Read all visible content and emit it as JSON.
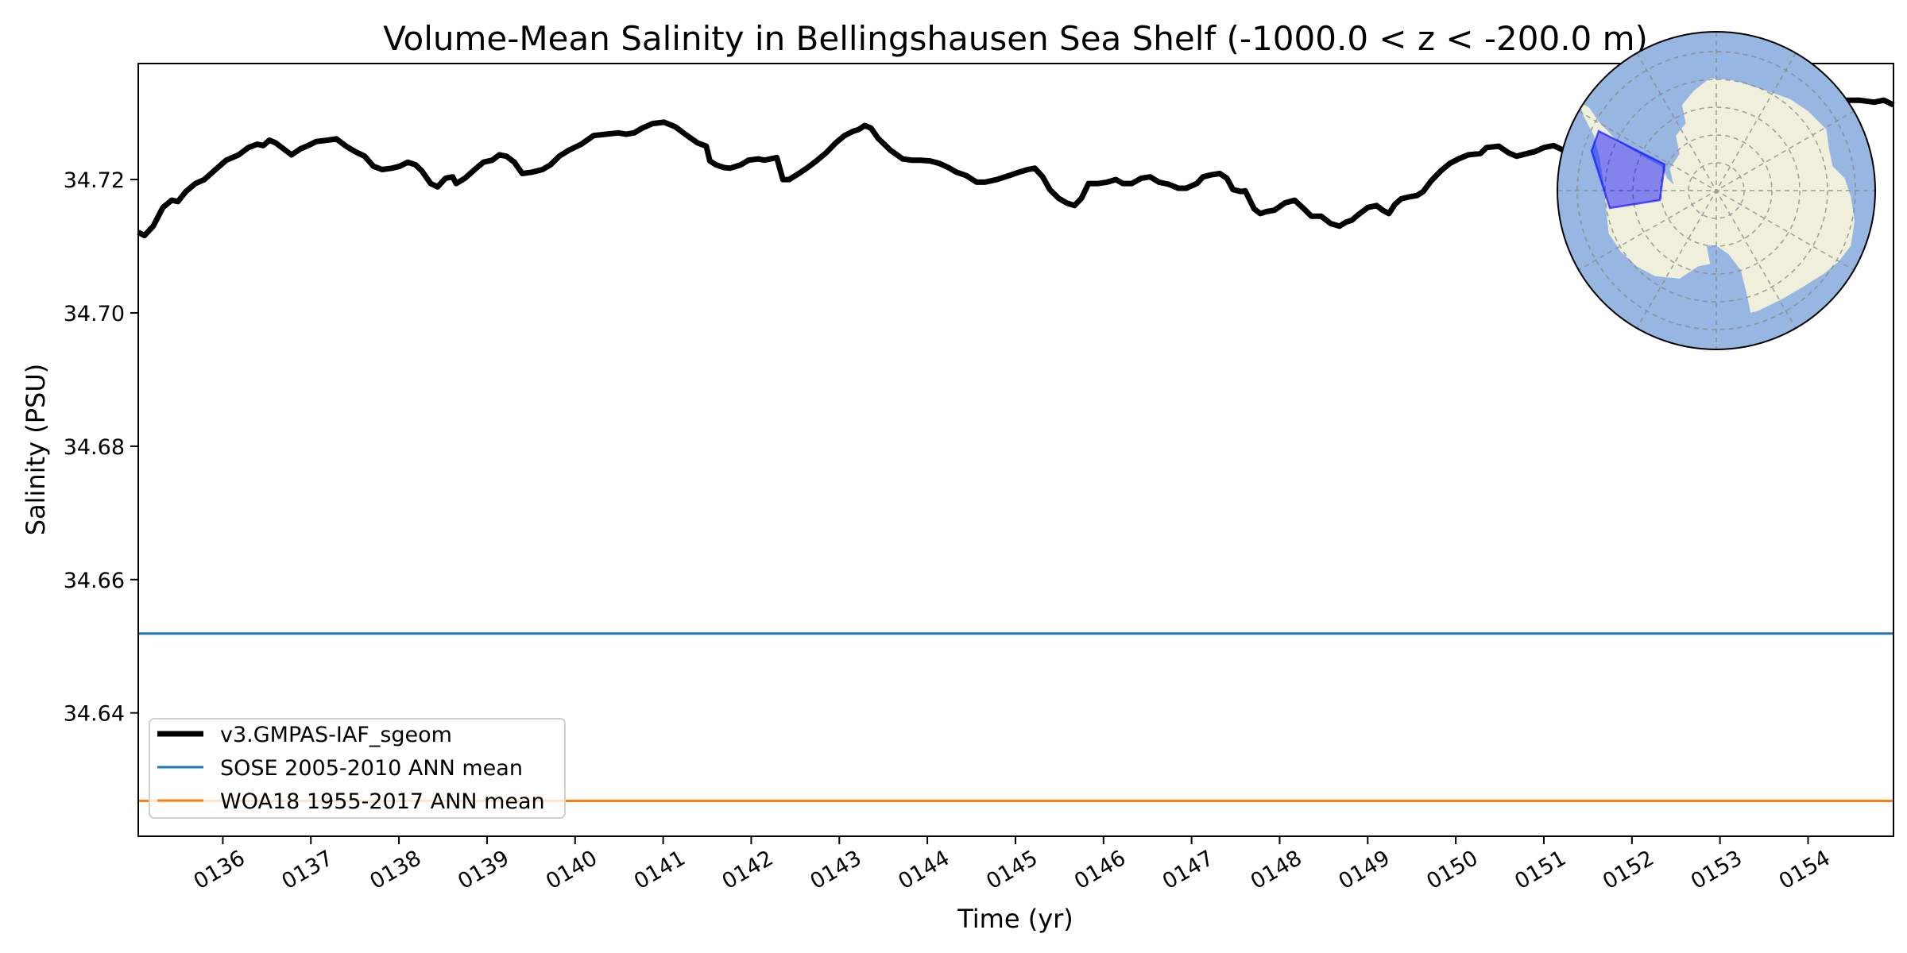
{
  "chart_data": {
    "type": "line",
    "title": "Volume-Mean Salinity in Bellingshausen Sea Shelf (-1000.0 < z < -200.0 m)",
    "xlabel": "Time (yr)",
    "ylabel": "Salinity (PSU)",
    "xlim": [
      135.04,
      154.97
    ],
    "ylim": [
      34.6215,
      34.7374
    ],
    "grid": false,
    "legend_position": "lower-left",
    "yticks": [
      34.64,
      34.66,
      34.68,
      34.7,
      34.72
    ],
    "ytick_labels": [
      "34.64",
      "34.66",
      "34.68",
      "34.70",
      "34.72"
    ],
    "xticks": [
      136,
      137,
      138,
      139,
      140,
      141,
      142,
      143,
      144,
      145,
      146,
      147,
      148,
      149,
      150,
      151,
      152,
      153,
      154
    ],
    "xtick_labels": [
      "0136",
      "0137",
      "0138",
      "0139",
      "0140",
      "0141",
      "0142",
      "0143",
      "0144",
      "0145",
      "0146",
      "0147",
      "0148",
      "0149",
      "0150",
      "0151",
      "0152",
      "0153",
      "0154"
    ],
    "series": [
      {
        "name": "v3.GMPAS-IAF_sgeom",
        "color": "#000000",
        "kind": "line",
        "x": [
          135.04,
          135.11,
          135.21,
          135.32,
          135.42,
          135.49,
          135.58,
          135.69,
          135.79,
          135.9,
          136.04,
          136.18,
          136.29,
          136.39,
          136.46,
          136.53,
          136.6,
          136.69,
          136.78,
          136.88,
          136.97,
          137.06,
          137.19,
          137.29,
          137.4,
          137.5,
          137.61,
          137.71,
          137.81,
          137.92,
          138.01,
          138.1,
          138.19,
          138.26,
          138.36,
          138.44,
          138.53,
          138.61,
          138.65,
          138.75,
          138.86,
          138.96,
          139.06,
          139.14,
          139.22,
          139.31,
          139.4,
          139.51,
          139.63,
          139.72,
          139.82,
          139.93,
          140.07,
          140.21,
          140.35,
          140.49,
          140.58,
          140.67,
          140.76,
          140.88,
          141.01,
          141.14,
          141.25,
          141.39,
          141.49,
          141.53,
          141.6,
          141.69,
          141.76,
          141.88,
          141.97,
          142.08,
          142.15,
          142.22,
          142.29,
          142.36,
          142.43,
          142.54,
          142.64,
          142.74,
          142.85,
          142.96,
          143.06,
          143.15,
          143.22,
          143.29,
          143.36,
          143.44,
          143.58,
          143.72,
          143.82,
          143.92,
          144.03,
          144.14,
          144.24,
          144.33,
          144.44,
          144.56,
          144.65,
          144.79,
          144.93,
          145.04,
          145.14,
          145.22,
          145.31,
          145.39,
          145.49,
          145.58,
          145.67,
          145.75,
          145.83,
          145.94,
          146.04,
          146.14,
          146.22,
          146.32,
          146.43,
          146.53,
          146.63,
          146.74,
          146.85,
          146.94,
          147.06,
          147.13,
          147.22,
          147.32,
          147.4,
          147.47,
          147.56,
          147.61,
          147.71,
          147.78,
          147.85,
          147.94,
          148.06,
          148.17,
          148.26,
          148.36,
          148.47,
          148.58,
          148.68,
          148.75,
          148.82,
          148.89,
          149.0,
          149.1,
          149.17,
          149.24,
          149.31,
          149.38,
          149.47,
          149.56,
          149.63,
          149.72,
          149.83,
          149.93,
          150.03,
          150.14,
          150.28,
          150.35,
          150.49,
          150.6,
          150.69,
          150.81,
          150.9,
          151.0,
          151.11,
          151.22,
          151.28,
          151.81,
          152.64,
          153.47,
          154.19,
          154.38,
          154.58,
          154.75,
          154.86,
          154.97
        ],
        "y": [
          34.7121,
          34.7116,
          34.713,
          34.7158,
          34.7169,
          34.7167,
          34.7182,
          34.7194,
          34.72,
          34.7213,
          34.7229,
          34.7237,
          34.7248,
          34.7253,
          34.7251,
          34.7259,
          34.7255,
          34.7246,
          34.7237,
          34.7246,
          34.7251,
          34.7257,
          34.7259,
          34.7261,
          34.725,
          34.7242,
          34.7235,
          34.722,
          34.7215,
          34.7217,
          34.722,
          34.7226,
          34.7222,
          34.7213,
          34.7194,
          34.7189,
          34.7202,
          34.7204,
          34.7194,
          34.7202,
          34.7215,
          34.7226,
          34.7229,
          34.7237,
          34.7235,
          34.7226,
          34.7209,
          34.7211,
          34.7215,
          34.7222,
          34.7235,
          34.7244,
          34.7253,
          34.7266,
          34.7268,
          34.727,
          34.7268,
          34.727,
          34.7277,
          34.7284,
          34.7286,
          34.7279,
          34.7268,
          34.7255,
          34.725,
          34.7228,
          34.7222,
          34.7218,
          34.7217,
          34.7222,
          34.7229,
          34.7231,
          34.7229,
          34.7231,
          34.7233,
          34.72,
          34.72,
          34.7209,
          34.7218,
          34.7228,
          34.724,
          34.7255,
          34.7266,
          34.7272,
          34.7275,
          34.7281,
          34.7277,
          34.7262,
          34.7244,
          34.7231,
          34.7229,
          34.7229,
          34.7228,
          34.7224,
          34.7218,
          34.7211,
          34.7206,
          34.7196,
          34.7196,
          34.72,
          34.7206,
          34.7211,
          34.7215,
          34.7217,
          34.7204,
          34.7185,
          34.7172,
          34.7165,
          34.7161,
          34.7172,
          34.7194,
          34.7194,
          34.7196,
          34.72,
          34.7194,
          34.7194,
          34.7202,
          34.7204,
          34.7196,
          34.7193,
          34.7187,
          34.7187,
          34.7194,
          34.7204,
          34.7207,
          34.7209,
          34.7202,
          34.7185,
          34.7182,
          34.7183,
          34.7156,
          34.7149,
          34.7152,
          34.7154,
          34.7165,
          34.7169,
          34.7158,
          34.7145,
          34.7145,
          34.7134,
          34.713,
          34.7136,
          34.7139,
          34.7147,
          34.7158,
          34.7161,
          34.7154,
          34.7149,
          34.7163,
          34.7171,
          34.7174,
          34.7176,
          34.7182,
          34.7198,
          34.7213,
          34.7224,
          34.7231,
          34.7237,
          34.7239,
          34.7248,
          34.725,
          34.724,
          34.7235,
          34.7239,
          34.7242,
          34.7248,
          34.7251,
          34.7244,
          34.7242,
          34.7259,
          34.7277,
          34.7301,
          34.7327,
          34.7319,
          34.7319,
          34.7316,
          34.7319,
          34.7312
        ]
      },
      {
        "name": "SOSE 2005-2010 ANN mean",
        "color": "#1f77b4",
        "kind": "hline",
        "value": 34.6519
      },
      {
        "name": "WOA18 1955-2017 ANN mean",
        "color": "#ff7f0e",
        "kind": "hline",
        "value": 34.6268
      }
    ],
    "inset_map": {
      "ocean_color": "#97b6e1",
      "land_color": "#efefdb",
      "region_color": "#0000ff"
    }
  }
}
